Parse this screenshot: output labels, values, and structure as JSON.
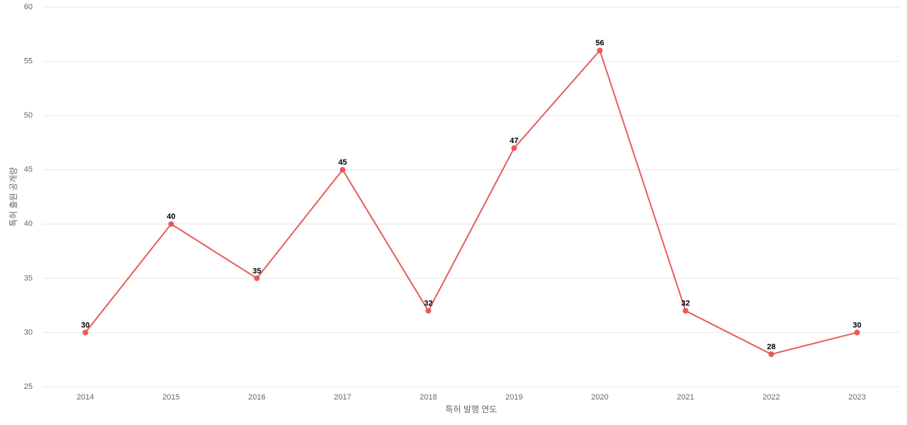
{
  "chart_data": {
    "type": "line",
    "x_label": "특허 발행 연도",
    "y_label": "특허 출원 공개량",
    "categories": [
      "2014",
      "2015",
      "2016",
      "2017",
      "2018",
      "2019",
      "2020",
      "2021",
      "2022",
      "2023"
    ],
    "values": [
      30,
      40,
      35,
      45,
      32,
      47,
      56,
      32,
      28,
      30
    ],
    "color": "#e85a5a",
    "ylim": [
      25,
      60
    ],
    "yticks": [
      25,
      30,
      35,
      40,
      45,
      50,
      55,
      60
    ],
    "grid": true
  }
}
